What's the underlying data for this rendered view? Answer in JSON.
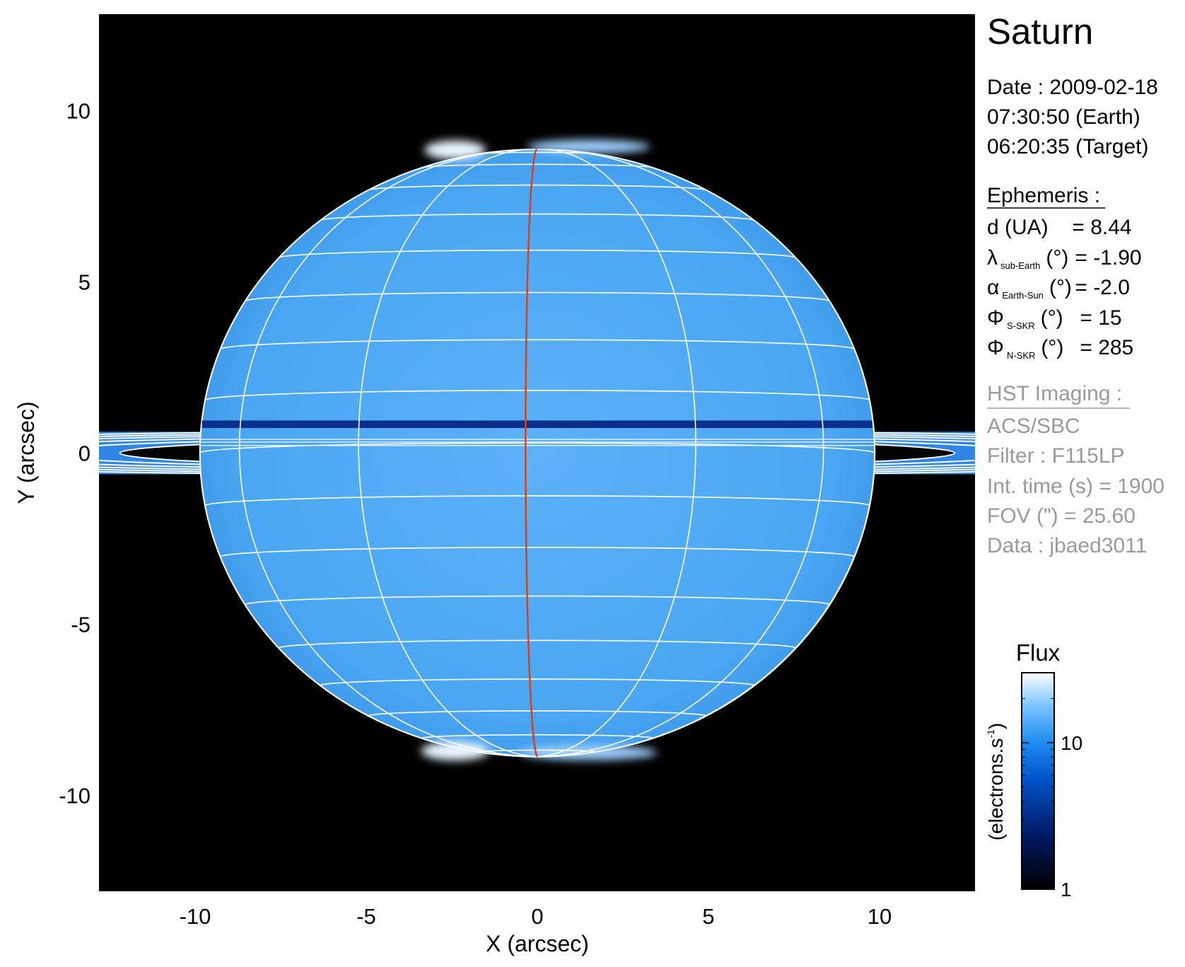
{
  "chart_data": {
    "type": "image",
    "title": "Saturn",
    "xlabel": "X (arcsec)",
    "ylabel": "Y (arcsec)",
    "xlim": [
      -12.8,
      12.8
    ],
    "ylim": [
      -12.8,
      12.8
    ],
    "xticks": [
      "-10",
      "-5",
      "0",
      "5",
      "10"
    ],
    "yticks": [
      "10",
      "5",
      "0",
      "-5",
      "-10"
    ],
    "xtick_values": [
      -10,
      -5,
      0,
      5,
      10
    ],
    "ytick_values": [
      10,
      5,
      0,
      -5,
      -10
    ],
    "planet": {
      "equatorial_radius_arcsec": 9.86,
      "polar_radius_arcsec": 8.87,
      "latitude_grid_step_deg": 10,
      "longitude_grid_step_deg": 30,
      "highlighted_meridian_color": "#d9401a",
      "grid_color": "#ffffff"
    },
    "colormap": [
      "#000000",
      "#001a66",
      "#0050c8",
      "#1e8cf0",
      "#7cc4ff",
      "#ffffff"
    ],
    "colorbar": {
      "title": "Flux",
      "unit_open": "(electrons.s",
      "unit_exp": "-1",
      "unit_close": ")",
      "scale": "log",
      "range": [
        1,
        30
      ],
      "ticks": [
        "1",
        "10"
      ],
      "tick_values": [
        1,
        10
      ]
    }
  },
  "info": {
    "title": "Saturn",
    "date_line": "Date : 2009-02-18",
    "earth_time": "07:30:50 (Earth)",
    "target_time": "06:20:35 (Target)",
    "ephemeris_header": "Ephemeris :",
    "ephemeris": [
      {
        "symbol": "d (UA)",
        "sub": "",
        "unit": "",
        "value": "= 8.44"
      },
      {
        "symbol": "λ",
        "sub": "sub-Earth",
        "unit": "(°)",
        "value": "= -1.90"
      },
      {
        "symbol": "α",
        "sub": "Earth-Sun",
        "unit": "(°)",
        "value": "= -2.0"
      },
      {
        "symbol": "Φ",
        "sub": "S-SKR",
        "unit": "(°)",
        "value": "= 15"
      },
      {
        "symbol": "Φ",
        "sub": "N-SKR",
        "unit": "(°)",
        "value": "= 285"
      }
    ],
    "imaging_header": "HST Imaging :",
    "imaging": [
      "ACS/SBC",
      "Filter : F115LP",
      "Int. time (s) = 1900",
      "FOV (\") = 25.60",
      "Data : jbaed3011"
    ]
  }
}
